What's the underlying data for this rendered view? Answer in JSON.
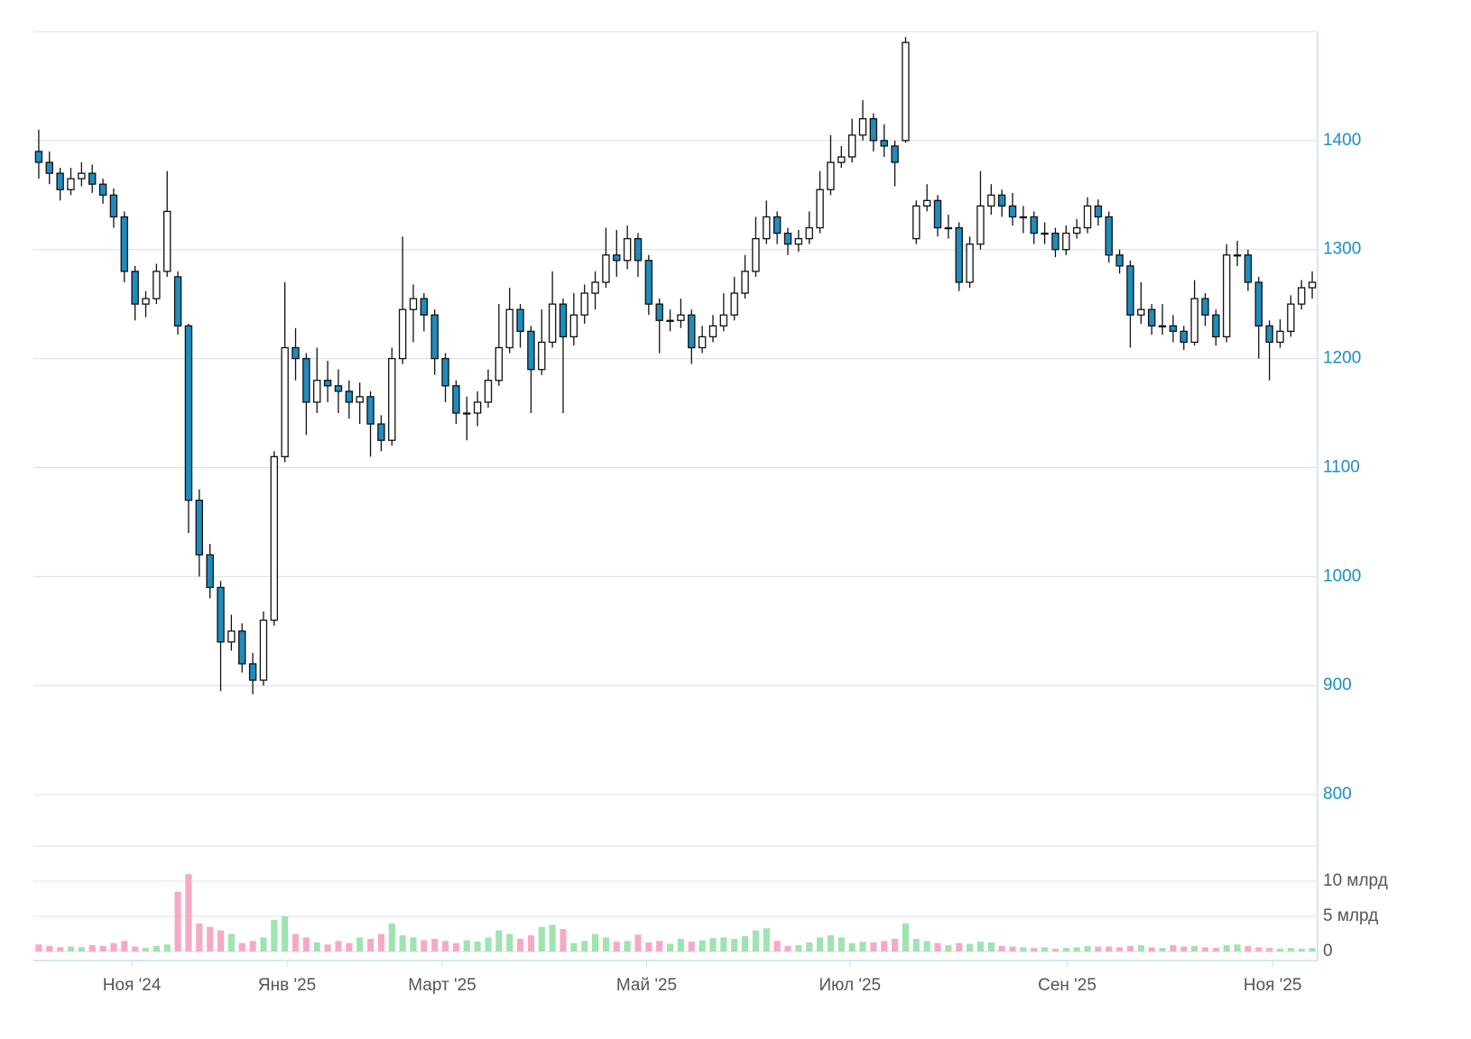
{
  "chart_data": {
    "type": "candlestick",
    "xlim": [
      -0.5,
      119.5
    ],
    "xticks": [
      {
        "value": 8.7,
        "label": "Ноя '24"
      },
      {
        "value": 23.2,
        "label": "Янв '25"
      },
      {
        "value": 37.7,
        "label": "Март '25"
      },
      {
        "value": 56.8,
        "label": "Май '25"
      },
      {
        "value": 75.8,
        "label": "Июл '25"
      },
      {
        "value": 96.1,
        "label": "Сен '25"
      },
      {
        "value": 115.3,
        "label": "Ноя '25"
      }
    ],
    "ylim": [
      800,
      1500
    ],
    "yticks": [
      800,
      900,
      1000,
      1100,
      1200,
      1300,
      1400
    ],
    "grid": true,
    "up_color": "#ffffff",
    "down_color": "#1f8cbf",
    "open": [
      1390,
      1380,
      1370,
      1355,
      1365,
      1370,
      1360,
      1350,
      1330,
      1280,
      1250,
      1255,
      1280,
      1275,
      1230,
      1070,
      1020,
      990,
      940,
      950,
      920,
      905,
      960,
      1110,
      1210,
      1200,
      1160,
      1180,
      1175,
      1170,
      1160,
      1165,
      1140,
      1125,
      1200,
      1245,
      1255,
      1240,
      1200,
      1175,
      1150,
      1150,
      1160,
      1180,
      1210,
      1245,
      1225,
      1190,
      1215,
      1250,
      1220,
      1240,
      1260,
      1270,
      1295,
      1290,
      1310,
      1290,
      1250,
      1235,
      1235,
      1240,
      1210,
      1220,
      1230,
      1240,
      1260,
      1280,
      1310,
      1330,
      1315,
      1305,
      1310,
      1320,
      1355,
      1380,
      1385,
      1405,
      1420,
      1400,
      1395,
      1400,
      1310,
      1340,
      1345,
      1320,
      1320,
      1270,
      1305,
      1340,
      1350,
      1340,
      1330,
      1330,
      1315,
      1315,
      1300,
      1315,
      1320,
      1340,
      1330,
      1295,
      1285,
      1240,
      1245,
      1230,
      1230,
      1225,
      1215,
      1255,
      1240,
      1220,
      1295,
      1295,
      1270,
      1230,
      1215,
      1225,
      1250,
      1265
    ],
    "high": [
      1410,
      1390,
      1375,
      1375,
      1380,
      1378,
      1365,
      1356,
      1335,
      1285,
      1262,
      1287,
      1372,
      1280,
      1232,
      1080,
      1030,
      996,
      965,
      957,
      930,
      968,
      1115,
      1270,
      1228,
      1205,
      1210,
      1198,
      1190,
      1180,
      1178,
      1170,
      1148,
      1210,
      1312,
      1268,
      1260,
      1245,
      1205,
      1180,
      1165,
      1170,
      1190,
      1250,
      1265,
      1250,
      1230,
      1245,
      1280,
      1255,
      1260,
      1268,
      1280,
      1320,
      1318,
      1322,
      1315,
      1295,
      1255,
      1245,
      1255,
      1245,
      1230,
      1240,
      1260,
      1275,
      1295,
      1330,
      1345,
      1335,
      1320,
      1318,
      1335,
      1372,
      1405,
      1395,
      1420,
      1437,
      1425,
      1415,
      1400,
      1495,
      1345,
      1360,
      1350,
      1332,
      1325,
      1312,
      1372,
      1360,
      1355,
      1352,
      1340,
      1335,
      1325,
      1320,
      1322,
      1328,
      1348,
      1346,
      1335,
      1300,
      1290,
      1270,
      1250,
      1250,
      1240,
      1230,
      1272,
      1260,
      1245,
      1305,
      1308,
      1300,
      1275,
      1235,
      1236,
      1258,
      1272,
      1280
    ],
    "low": [
      1365,
      1360,
      1345,
      1350,
      1358,
      1352,
      1342,
      1320,
      1270,
      1235,
      1238,
      1250,
      1275,
      1222,
      1040,
      1000,
      980,
      895,
      932,
      912,
      892,
      900,
      955,
      1105,
      1180,
      1130,
      1150,
      1160,
      1150,
      1145,
      1140,
      1110,
      1115,
      1120,
      1195,
      1215,
      1225,
      1185,
      1160,
      1140,
      1125,
      1138,
      1155,
      1175,
      1205,
      1210,
      1150,
      1185,
      1210,
      1150,
      1212,
      1232,
      1245,
      1265,
      1275,
      1282,
      1275,
      1240,
      1205,
      1225,
      1228,
      1195,
      1205,
      1215,
      1225,
      1235,
      1255,
      1275,
      1305,
      1305,
      1295,
      1298,
      1305,
      1315,
      1350,
      1375,
      1380,
      1400,
      1390,
      1385,
      1358,
      1398,
      1305,
      1335,
      1312,
      1310,
      1262,
      1265,
      1300,
      1332,
      1330,
      1322,
      1315,
      1305,
      1305,
      1293,
      1295,
      1310,
      1315,
      1322,
      1288,
      1278,
      1210,
      1232,
      1222,
      1222,
      1215,
      1208,
      1212,
      1230,
      1212,
      1215,
      1285,
      1262,
      1200,
      1180,
      1210,
      1220,
      1245,
      1255
    ],
    "close": [
      1380,
      1370,
      1355,
      1365,
      1370,
      1360,
      1350,
      1330,
      1280,
      1250,
      1255,
      1280,
      1335,
      1230,
      1070,
      1020,
      990,
      940,
      950,
      920,
      905,
      960,
      1110,
      1210,
      1200,
      1160,
      1180,
      1175,
      1170,
      1160,
      1165,
      1140,
      1125,
      1200,
      1245,
      1255,
      1240,
      1200,
      1175,
      1150,
      1150,
      1160,
      1180,
      1210,
      1245,
      1225,
      1190,
      1215,
      1250,
      1220,
      1240,
      1260,
      1270,
      1295,
      1290,
      1310,
      1290,
      1250,
      1235,
      1235,
      1240,
      1210,
      1220,
      1230,
      1240,
      1260,
      1280,
      1310,
      1330,
      1315,
      1305,
      1310,
      1320,
      1355,
      1380,
      1385,
      1405,
      1420,
      1400,
      1395,
      1380,
      1490,
      1340,
      1345,
      1320,
      1320,
      1270,
      1305,
      1340,
      1350,
      1340,
      1330,
      1330,
      1315,
      1315,
      1300,
      1315,
      1320,
      1340,
      1330,
      1295,
      1285,
      1240,
      1245,
      1230,
      1230,
      1225,
      1215,
      1255,
      1240,
      1220,
      1295,
      1295,
      1270,
      1230,
      1215,
      1225,
      1250,
      1265,
      1270
    ],
    "volume": {
      "ylim": [
        0,
        15
      ],
      "yticks": [
        0,
        {
          "value": 5,
          "label": "5 млрд"
        },
        {
          "value": 10,
          "label": "10 млрд"
        }
      ],
      "up_color": "#9fe3b0",
      "down_color": "#f6a9c5",
      "values": [
        1.0,
        0.8,
        0.6,
        0.7,
        0.6,
        0.9,
        0.8,
        1.2,
        1.5,
        0.7,
        0.5,
        0.8,
        1.0,
        8.5,
        11.0,
        4.0,
        3.5,
        3.0,
        2.5,
        1.2,
        1.5,
        2.0,
        4.5,
        5.0,
        2.5,
        2.0,
        1.3,
        1.0,
        1.5,
        1.2,
        2.0,
        1.8,
        2.5,
        4.0,
        2.3,
        2.0,
        1.6,
        1.8,
        1.5,
        1.2,
        1.6,
        1.4,
        2.0,
        3.0,
        2.5,
        1.8,
        2.3,
        3.5,
        3.8,
        3.2,
        1.2,
        1.5,
        2.5,
        2.0,
        1.4,
        1.5,
        2.4,
        1.3,
        1.5,
        1.1,
        1.8,
        1.4,
        1.6,
        1.9,
        2.0,
        1.8,
        2.2,
        3.0,
        3.3,
        1.5,
        0.8,
        0.9,
        1.3,
        2.0,
        2.3,
        2.0,
        1.2,
        1.4,
        1.3,
        1.5,
        1.8,
        4.0,
        1.8,
        1.5,
        1.2,
        0.9,
        1.2,
        1.1,
        1.4,
        1.3,
        0.8,
        0.7,
        0.6,
        0.5,
        0.6,
        0.4,
        0.5,
        0.6,
        0.8,
        0.7,
        0.7,
        0.6,
        0.8,
        0.9,
        0.6,
        0.5,
        0.9,
        0.7,
        0.8,
        0.6,
        0.5,
        0.9,
        1.0,
        0.8,
        0.6,
        0.5,
        0.4,
        0.5,
        0.4,
        0.5
      ]
    }
  }
}
